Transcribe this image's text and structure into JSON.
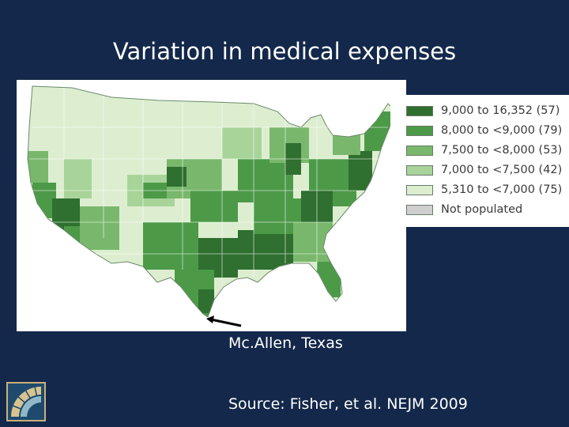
{
  "slide": {
    "title": "Variation in medical expenses",
    "caption": "Mc.Allen, Texas",
    "source": "Source: Fisher, et al.  NEJM 2009"
  },
  "legend": {
    "items": [
      {
        "label": "9,000 to 16,352  (57)",
        "color": "#2f6f2f"
      },
      {
        "label": "8,000 to <9,000 (79)",
        "color": "#4c9a48"
      },
      {
        "label": "7,500 to <8,000 (53)",
        "color": "#79b86c"
      },
      {
        "label": "7,000 to <7,500 (42)",
        "color": "#a8d49a"
      },
      {
        "label": "5,310 to <7,000 (75)",
        "color": "#ddeed0"
      },
      {
        "label": "Not populated",
        "color": "#cfcfcf"
      }
    ]
  },
  "colors": {
    "background": "#13284a",
    "text": "#ffffff"
  },
  "icons": {
    "logo": "institution-logo-icon",
    "arrow": "pointer-arrow-icon"
  }
}
